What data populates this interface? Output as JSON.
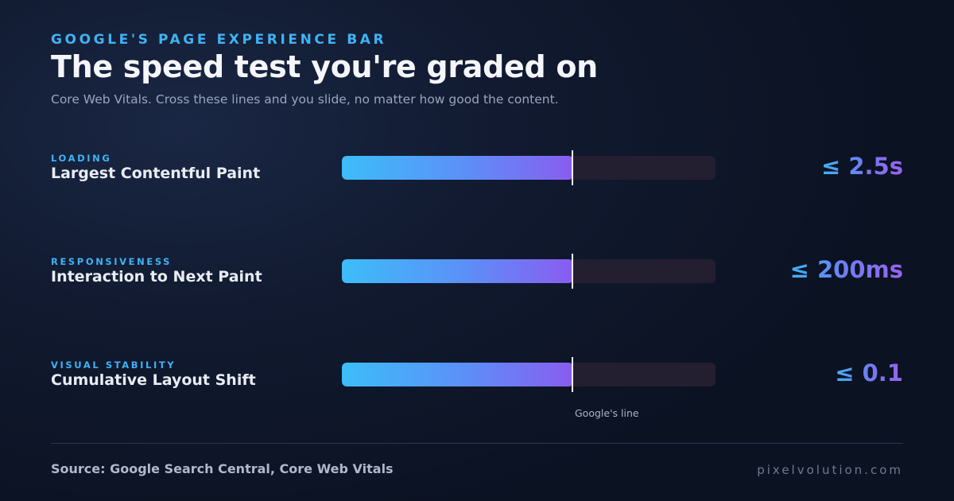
{
  "header": {
    "eyebrow": "GOOGLE'S PAGE EXPERIENCE BAR",
    "title": "The speed test you're graded on",
    "subtitle": "Core Web Vitals. Cross these lines and you slide, no matter how good the content."
  },
  "metrics": [
    {
      "category": "LOADING",
      "name": "Largest Contentful Paint",
      "threshold": "≤ 2.5s",
      "fill_fraction": 0.62
    },
    {
      "category": "RESPONSIVENESS",
      "name": "Interaction to Next Paint",
      "threshold": "≤ 200ms",
      "fill_fraction": 0.62
    },
    {
      "category": "VISUAL STABILITY",
      "name": "Cumulative Layout Shift",
      "threshold": "≤ 0.1",
      "fill_fraction": 0.62
    }
  ],
  "marker_label": "Google's line",
  "footer": {
    "source": "Source: Google Search Central, Core Web Vitals",
    "brand": "pixelvolution.com"
  },
  "colors": {
    "accent_blue": "#3fb3f4",
    "gradient_start": "#3dbdf9",
    "gradient_end": "#8a5cf0",
    "track": "#231e30",
    "background": "#0f172a"
  }
}
